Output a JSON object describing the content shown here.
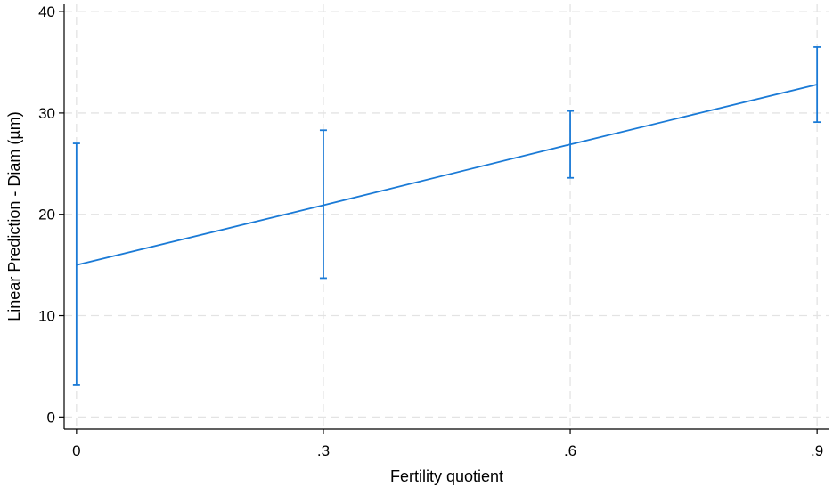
{
  "chart_data": {
    "type": "line",
    "xlabel": "Fertility quotient",
    "ylabel": "Linear Prediction - Diam (µm)",
    "x": [
      0,
      0.3,
      0.6,
      0.9
    ],
    "x_tick_labels": [
      "0",
      ".3",
      ".6",
      ".9"
    ],
    "y_ticks": [
      0,
      10,
      20,
      30,
      40
    ],
    "y_tick_labels": [
      "0",
      "10",
      "20",
      "30",
      "40"
    ],
    "xlim": [
      -0.015,
      0.915
    ],
    "ylim": [
      -1.2,
      40.8
    ],
    "grid": true,
    "series": [
      {
        "y": [
          15.0,
          20.9,
          26.9,
          32.8
        ],
        "ci_low": [
          3.2,
          13.7,
          23.6,
          29.1
        ],
        "ci_high": [
          27.0,
          28.3,
          30.2,
          36.5
        ],
        "color": "#1a7ad6"
      }
    ]
  }
}
